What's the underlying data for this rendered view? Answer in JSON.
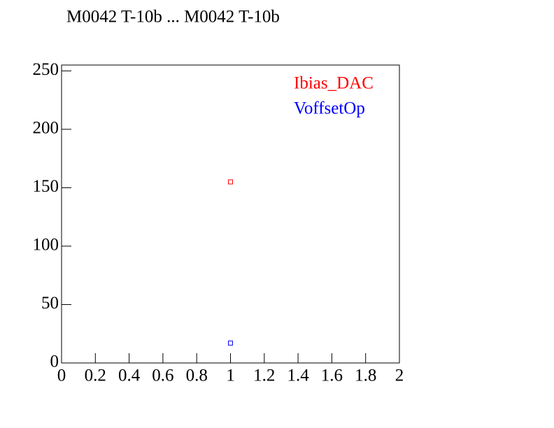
{
  "chart_data": {
    "type": "scatter",
    "title": "M0042 T-10b ... M0042 T-10b",
    "series": [
      {
        "name": "Ibias_DAC",
        "color": "#ff0000",
        "x": [
          1
        ],
        "values": [
          155
        ]
      },
      {
        "name": "VoffsetOp",
        "color": "#0000ff",
        "x": [
          1
        ],
        "values": [
          17
        ]
      }
    ],
    "xlim": [
      0,
      2
    ],
    "xticks": [
      0,
      0.2,
      0.4,
      0.6,
      0.8,
      1,
      1.2,
      1.4,
      1.6,
      1.8,
      2
    ],
    "ylim": [
      0,
      255
    ],
    "yticks": [
      0,
      50,
      100,
      150,
      200,
      250
    ],
    "legend": "top-right",
    "grid": false
  }
}
